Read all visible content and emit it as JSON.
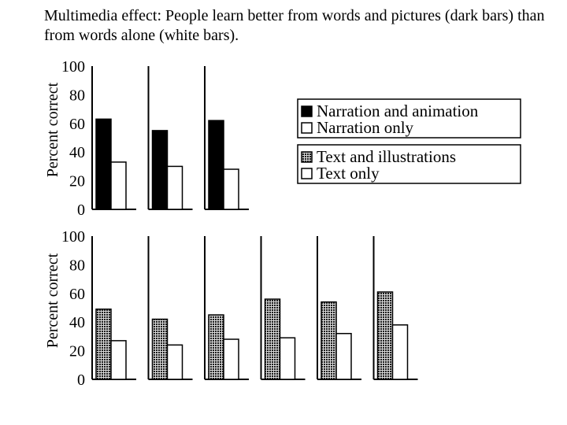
{
  "title": "Multimedia effect: People learn better from words and pictures (dark bars) than from words alone (white bars).",
  "colors": {
    "narration_animation": "#000000",
    "text_illustrations": "#6a6a6a",
    "words_only": "#ffffff",
    "axis": "#000000"
  },
  "chart_data": [
    {
      "type": "bar",
      "ylabel": "Percent correct",
      "ylim": [
        0,
        100
      ],
      "yticks": [
        0,
        20,
        40,
        60,
        80,
        100
      ],
      "grid": false,
      "legend_position": "right",
      "series": [
        {
          "name": "Narration and animation",
          "values": [
            63,
            55,
            62
          ]
        },
        {
          "name": "Narration only",
          "values": [
            33,
            30,
            28
          ]
        }
      ]
    },
    {
      "type": "bar",
      "ylabel": "Percent correct",
      "ylim": [
        0,
        100
      ],
      "yticks": [
        0,
        20,
        40,
        60,
        80,
        100
      ],
      "grid": false,
      "legend_position": "right",
      "series": [
        {
          "name": "Text and illustrations",
          "values": [
            49,
            42,
            45,
            56,
            54,
            61
          ]
        },
        {
          "name": "Text only",
          "values": [
            27,
            24,
            28,
            29,
            32,
            38
          ]
        }
      ]
    }
  ]
}
